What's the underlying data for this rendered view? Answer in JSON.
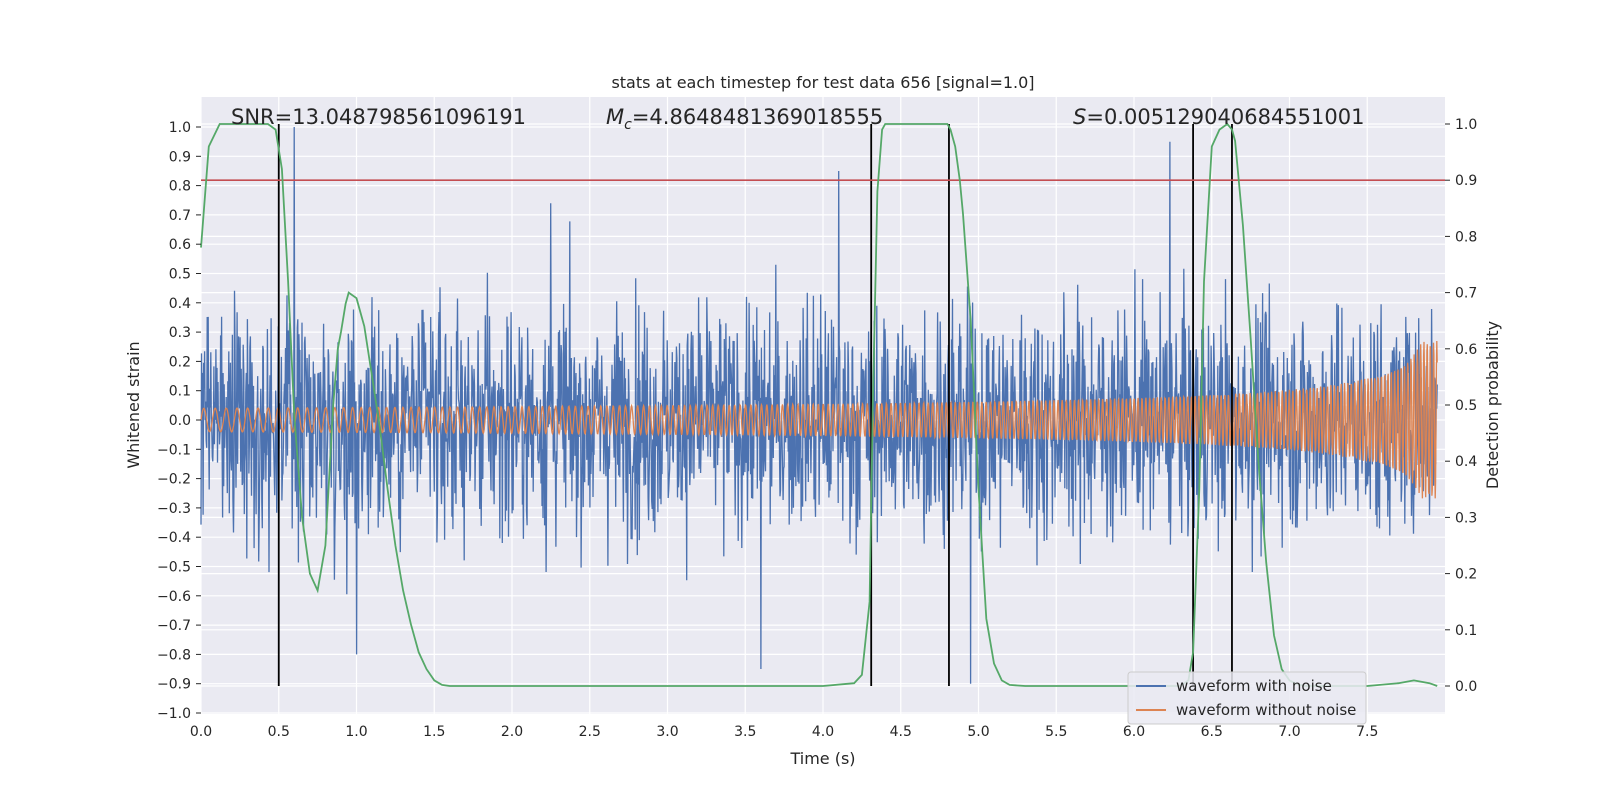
{
  "chart_data": {
    "type": "line",
    "title": "stats at each timestep for test data 656 [signal=1.0]",
    "xlabel": "Time (s)",
    "ylabel": "Whitened strain",
    "y2label": "Detection probability",
    "xlim": [
      0.0,
      8.0
    ],
    "ylim": [
      -1.0,
      1.1
    ],
    "y2lim": [
      -0.05,
      1.05
    ],
    "xticks": [
      "0.0",
      "0.5",
      "1.0",
      "1.5",
      "2.0",
      "2.5",
      "3.0",
      "3.5",
      "4.0",
      "4.5",
      "5.0",
      "5.5",
      "6.0",
      "6.5",
      "7.0",
      "7.5"
    ],
    "yticks": [
      "−1.0",
      "−0.9",
      "−0.8",
      "−0.7",
      "−0.6",
      "−0.5",
      "−0.4",
      "−0.3",
      "−0.2",
      "−0.1",
      "0.0",
      "0.1",
      "0.2",
      "0.3",
      "0.4",
      "0.5",
      "0.6",
      "0.7",
      "0.8",
      "0.9",
      "1.0"
    ],
    "y2ticks": [
      "0.0",
      "0.1",
      "0.2",
      "0.3",
      "0.4",
      "0.5",
      "0.6",
      "0.7",
      "0.8",
      "0.9",
      "1.0"
    ],
    "annotations": {
      "snr": "SNR=13.048798561096191",
      "mc_symbol": "M",
      "mc_sub": "c",
      "mc_value": "=4.8648481369018555",
      "s_symbol": "S",
      "s_value": "=0.005129040684551001"
    },
    "legend": {
      "position": "lower-right",
      "entries": [
        "waveform with noise",
        "waveform without noise"
      ]
    },
    "threshold": {
      "axis": "y2",
      "value": 0.9
    },
    "vlines": [
      0.5,
      4.31,
      4.81,
      6.38,
      6.63
    ],
    "series": [
      {
        "name": "waveform with noise",
        "axis": "y",
        "kind": "noise",
        "envelope_max": 1.0,
        "typical_amplitude": 0.35,
        "peaks": [
          [
            0.6,
            1.0
          ],
          [
            4.1,
            0.85
          ],
          [
            6.23,
            0.95
          ],
          [
            2.25,
            0.74
          ],
          [
            3.6,
            -0.85
          ],
          [
            4.95,
            -0.9
          ],
          [
            1.0,
            -0.8
          ]
        ]
      },
      {
        "name": "waveform without noise",
        "axis": "y",
        "kind": "chirp",
        "amplitude_start": 0.04,
        "amplitude_end": 0.27,
        "t_end": 7.95
      },
      {
        "name": "detection probability",
        "axis": "y2",
        "kind": "line",
        "x": [
          0.0,
          0.05,
          0.12,
          0.2,
          0.3,
          0.43,
          0.48,
          0.52,
          0.56,
          0.6,
          0.65,
          0.7,
          0.75,
          0.8,
          0.85,
          0.88,
          0.9,
          0.93,
          0.95,
          1.0,
          1.05,
          1.1,
          1.15,
          1.2,
          1.25,
          1.3,
          1.35,
          1.4,
          1.45,
          1.5,
          1.55,
          1.6,
          2.0,
          3.0,
          4.0,
          4.2,
          4.25,
          4.3,
          4.32,
          4.35,
          4.38,
          4.4,
          4.45,
          4.5,
          4.6,
          4.7,
          4.8,
          4.82,
          4.85,
          4.88,
          4.9,
          4.95,
          5.0,
          5.05,
          5.1,
          5.15,
          5.2,
          5.3,
          6.0,
          6.3,
          6.35,
          6.38,
          6.42,
          6.45,
          6.5,
          6.55,
          6.6,
          6.63,
          6.65,
          6.7,
          6.75,
          6.8,
          6.85,
          6.9,
          6.95,
          7.0,
          7.05,
          7.1,
          7.5,
          7.7,
          7.8,
          7.9,
          7.95
        ],
        "y": [
          0.78,
          0.96,
          1.0,
          1.0,
          1.0,
          1.0,
          0.99,
          0.92,
          0.72,
          0.48,
          0.3,
          0.2,
          0.17,
          0.25,
          0.5,
          0.6,
          0.63,
          0.68,
          0.7,
          0.69,
          0.64,
          0.55,
          0.46,
          0.35,
          0.25,
          0.17,
          0.11,
          0.06,
          0.03,
          0.01,
          0.002,
          0.0,
          0.0,
          0.0,
          0.0,
          0.005,
          0.02,
          0.15,
          0.5,
          0.88,
          0.99,
          1.0,
          1.0,
          1.0,
          1.0,
          1.0,
          1.0,
          0.99,
          0.96,
          0.9,
          0.84,
          0.65,
          0.35,
          0.12,
          0.04,
          0.01,
          0.002,
          0.0,
          0.0,
          0.0,
          0.01,
          0.06,
          0.35,
          0.72,
          0.96,
          0.99,
          1.0,
          0.99,
          0.97,
          0.82,
          0.62,
          0.4,
          0.22,
          0.09,
          0.03,
          0.01,
          0.003,
          0.0,
          0.0,
          0.005,
          0.01,
          0.005,
          0.0
        ]
      }
    ]
  }
}
